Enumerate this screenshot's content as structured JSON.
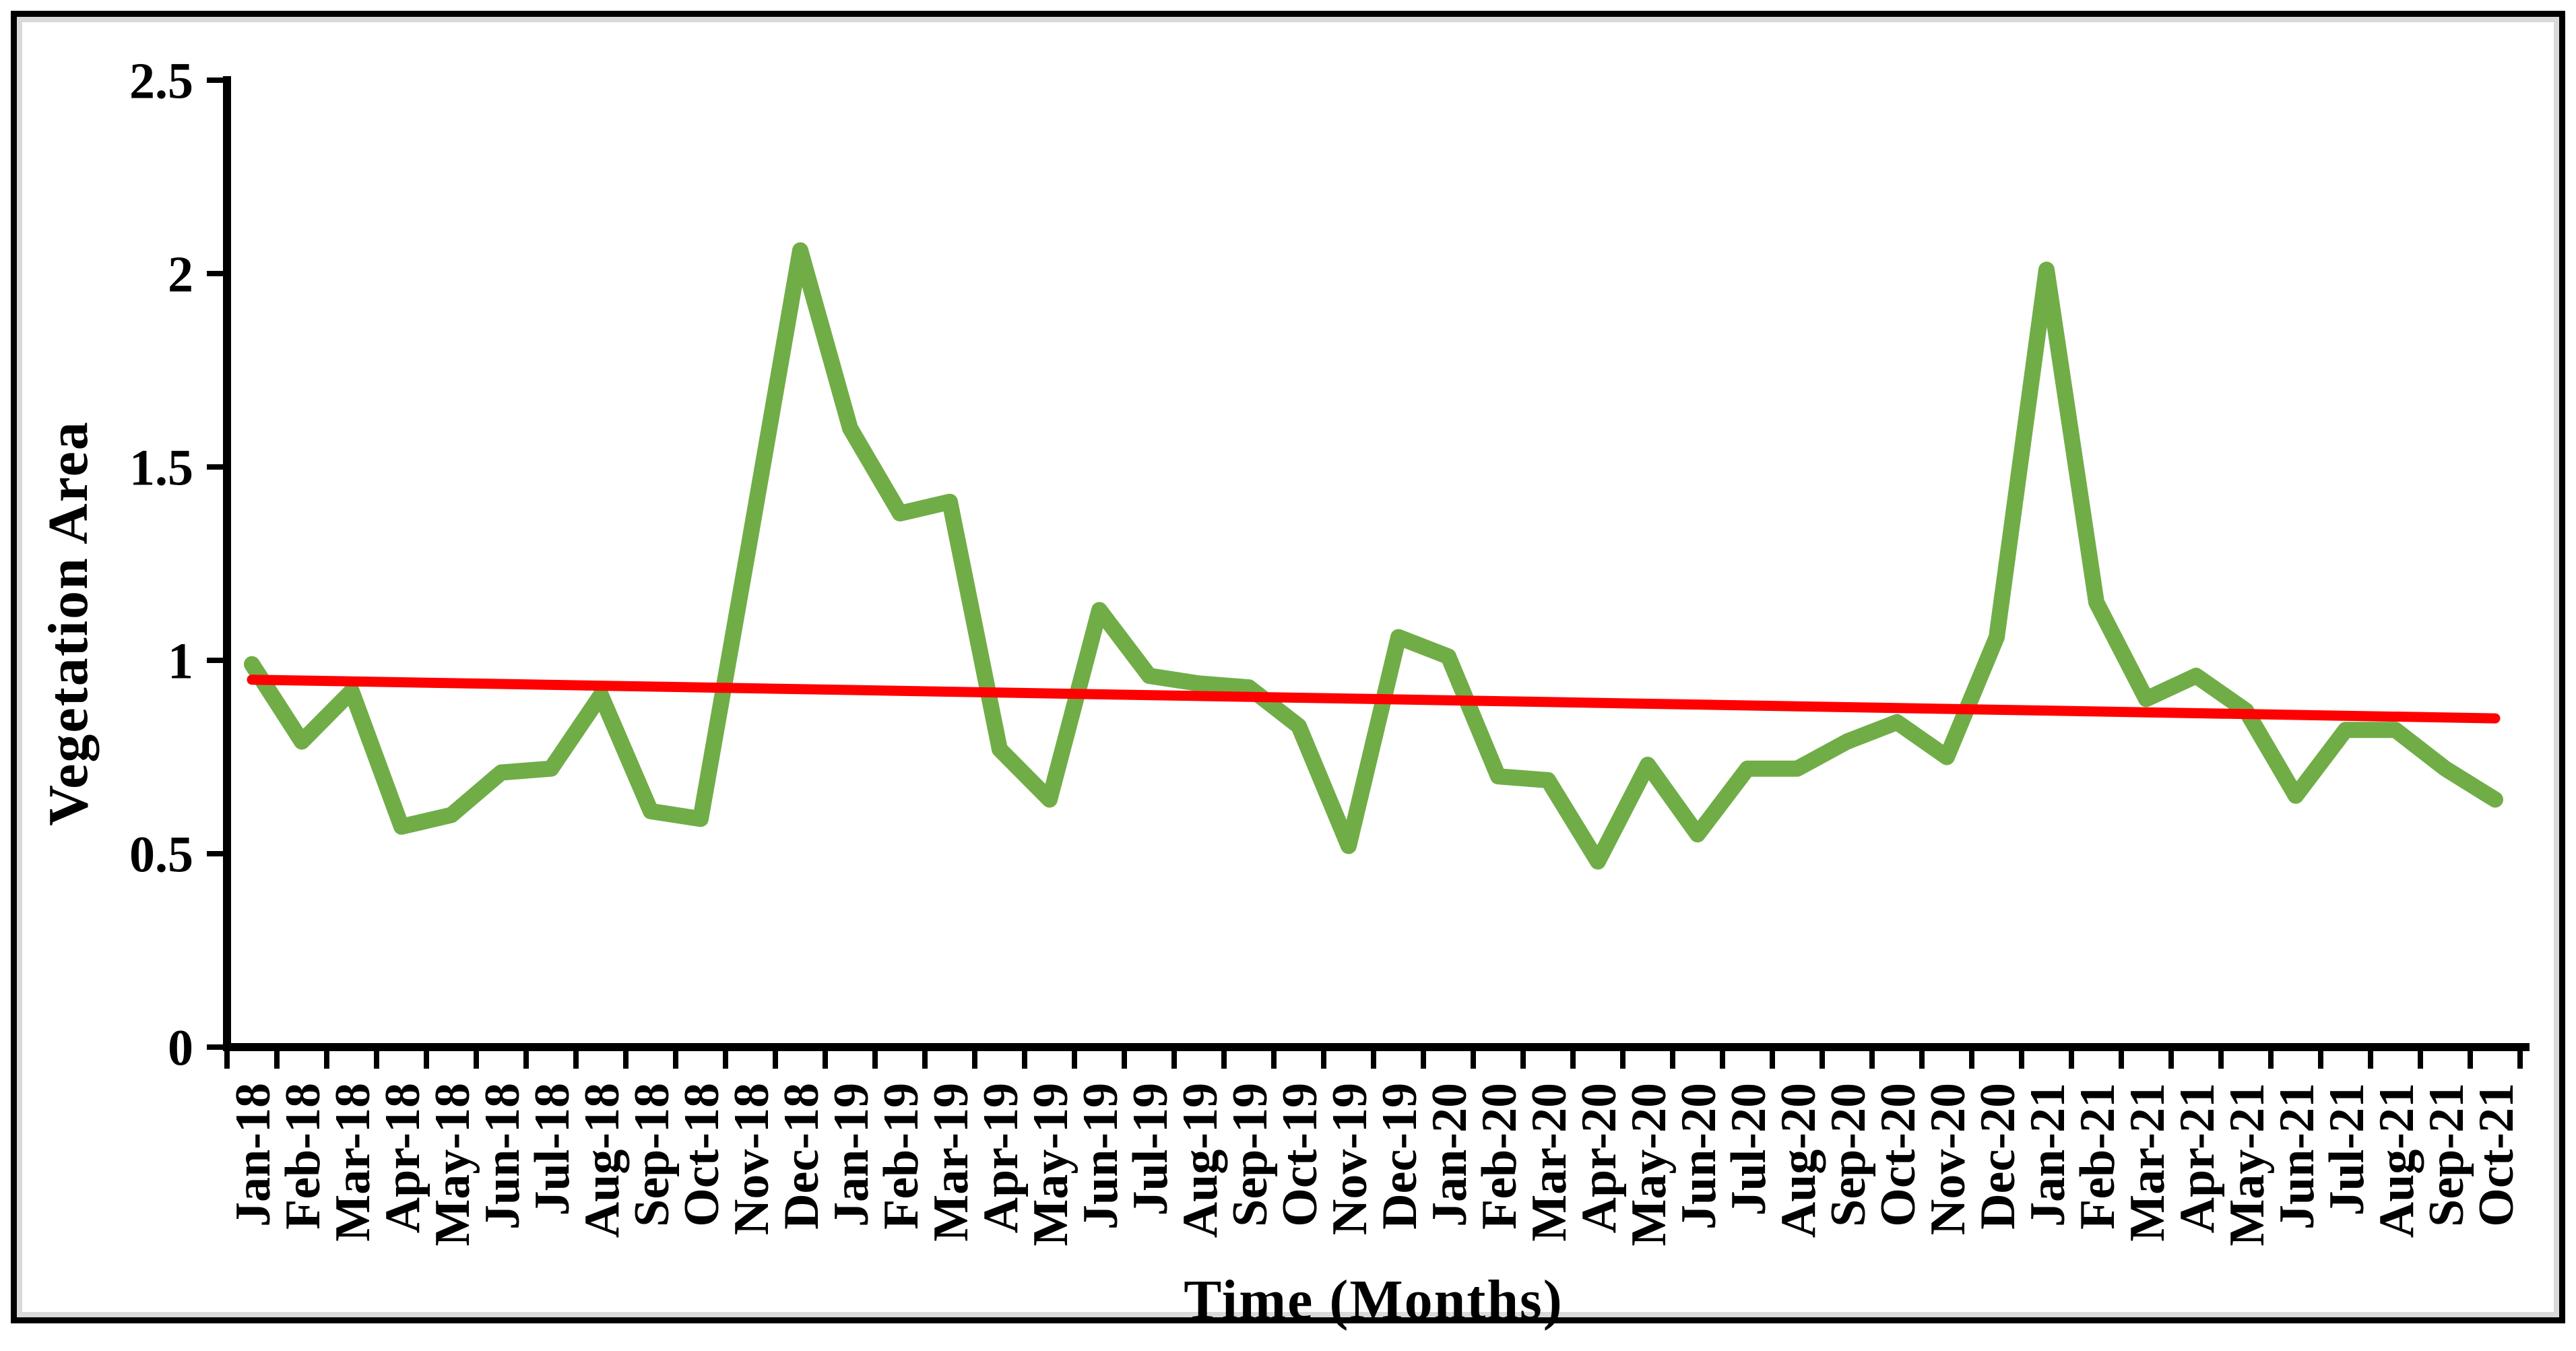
{
  "figure": {
    "background": "#ffffff",
    "border_color": "#000000",
    "inner_border_color": "#d9d9d9"
  },
  "chart_data": {
    "type": "line",
    "title": "",
    "xlabel": "Time (Months)",
    "ylabel": "Vegetation Area",
    "ylim": [
      0,
      2.5
    ],
    "y_ticks": [
      0,
      0.5,
      1,
      1.5,
      2,
      2.5
    ],
    "y_tick_labels": [
      "0",
      "0.5",
      "1",
      "1.5",
      "2",
      "2.5"
    ],
    "grid": false,
    "legend_position": "none",
    "axis_color": "#000000",
    "categories": [
      "Jan-18",
      "Feb-18",
      "Mar-18",
      "Apr-18",
      "May-18",
      "Jun-18",
      "Jul-18",
      "Aug-18",
      "Sep-18",
      "Oct-18",
      "Nov-18",
      "Dec-18",
      "Jan-19",
      "Feb-19",
      "Mar-19",
      "Apr-19",
      "May-19",
      "Jun-19",
      "Jul-19",
      "Aug-19",
      "Sep-19",
      "Oct-19",
      "Nov-19",
      "Dec-19",
      "Jan-20",
      "Feb-20",
      "Mar-20",
      "Apr-20",
      "May-20",
      "Jun-20",
      "Jul-20",
      "Aug-20",
      "Sep-20",
      "Oct-20",
      "Nov-20",
      "Dec-20",
      "Jan-21",
      "Feb-21",
      "Mar-21",
      "Apr-21",
      "May-21",
      "Jun-21",
      "Jul-21",
      "Aug-21",
      "Sep-21",
      "Oct-21"
    ],
    "series": [
      {
        "name": "Vegetation Area",
        "kind": "line",
        "color": "#70AD47",
        "values": [
          0.99,
          0.79,
          0.92,
          0.57,
          0.6,
          0.71,
          0.72,
          0.91,
          0.61,
          0.59,
          1.32,
          2.06,
          1.6,
          1.38,
          1.41,
          0.77,
          0.64,
          1.13,
          0.96,
          0.94,
          0.93,
          0.83,
          0.52,
          1.06,
          1.01,
          0.7,
          0.69,
          0.48,
          0.73,
          0.55,
          0.72,
          0.72,
          0.79,
          0.84,
          0.75,
          1.06,
          2.01,
          1.15,
          0.9,
          0.96,
          0.87,
          0.65,
          0.82,
          0.82,
          0.72,
          0.64
        ]
      },
      {
        "name": "Linear trend",
        "kind": "trend",
        "color": "#FF0000",
        "start_value": 0.95,
        "end_value": 0.85
      }
    ]
  }
}
